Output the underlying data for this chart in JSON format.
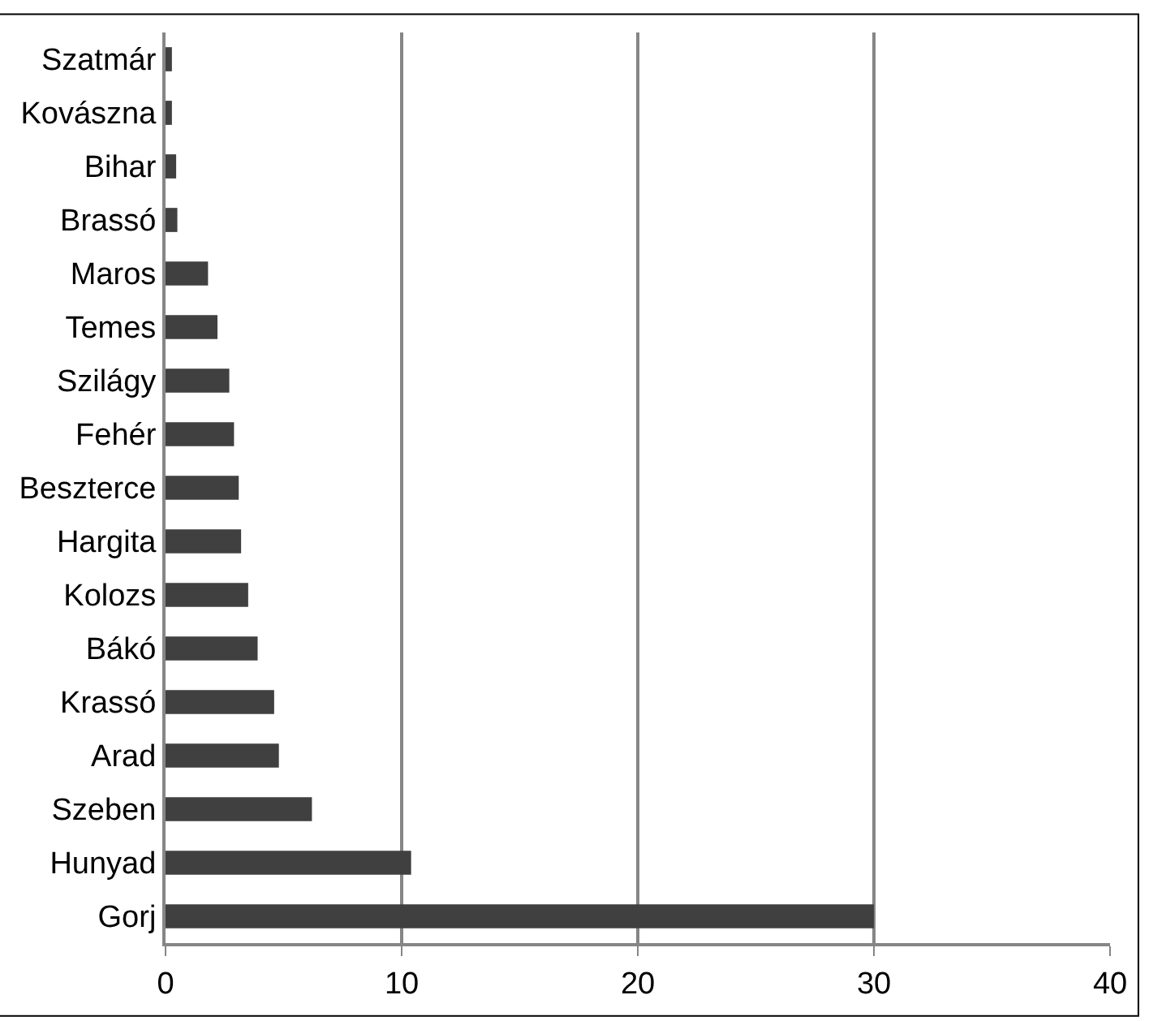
{
  "chart_data": {
    "type": "bar",
    "orientation": "horizontal",
    "categories": [
      "Szatmár",
      "Kovászna",
      "Bihar",
      "Brassó",
      "Maros",
      "Temes",
      "Szilágy",
      "Fehér",
      "Beszterce",
      "Hargita",
      "Kolozs",
      "Bákó",
      "Krassó",
      "Arad",
      "Szeben",
      "Hunyad",
      "Gorj"
    ],
    "values": [
      0.27,
      0.27,
      0.45,
      0.5,
      1.8,
      2.2,
      2.7,
      2.9,
      3.1,
      3.2,
      3.5,
      3.9,
      4.6,
      4.8,
      6.2,
      10.4,
      30
    ],
    "color": "#404040",
    "xlim": [
      0,
      40
    ],
    "xticks": [
      0,
      10,
      20,
      30,
      40
    ],
    "grid": "x"
  }
}
